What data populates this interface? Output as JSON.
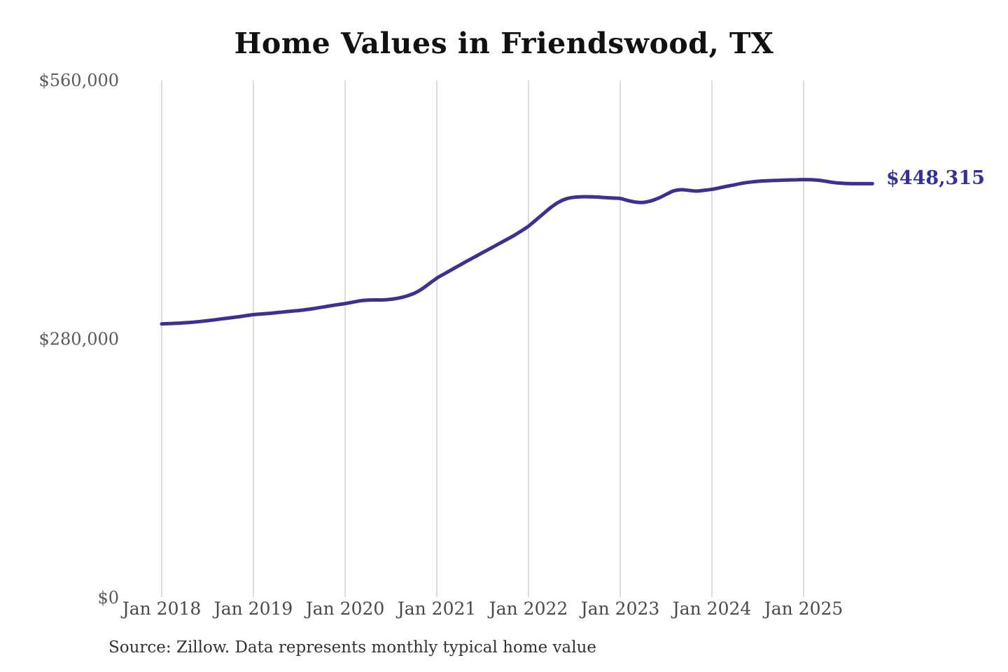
{
  "title": "Home Values in Friendswood, TX",
  "source_note": "Source: Zillow. Data represents monthly typical home value",
  "end_label": "$448,315",
  "colors": {
    "line": "#3b3191",
    "grid": "#c9c9c9",
    "y_tick_text": "#595959",
    "x_tick_text": "#4a4a4a",
    "title_text": "#111111",
    "source_text": "#333333",
    "end_label_text": "#34309a",
    "background": "#ffffff"
  },
  "chart_data": {
    "type": "line",
    "title": "Home Values in Friendswood, TX",
    "series_name": "Monthly typical home value",
    "x": [
      "2018-01",
      "2018-02",
      "2018-03",
      "2018-04",
      "2018-05",
      "2018-06",
      "2018-07",
      "2018-08",
      "2018-09",
      "2018-10",
      "2018-11",
      "2018-12",
      "2019-01",
      "2019-02",
      "2019-03",
      "2019-04",
      "2019-05",
      "2019-06",
      "2019-07",
      "2019-08",
      "2019-09",
      "2019-10",
      "2019-11",
      "2019-12",
      "2020-01",
      "2020-02",
      "2020-03",
      "2020-04",
      "2020-05",
      "2020-06",
      "2020-07",
      "2020-08",
      "2020-09",
      "2020-10",
      "2020-11",
      "2020-12",
      "2021-01",
      "2021-02",
      "2021-03",
      "2021-04",
      "2021-05",
      "2021-06",
      "2021-07",
      "2021-08",
      "2021-09",
      "2021-10",
      "2021-11",
      "2021-12",
      "2022-01",
      "2022-02",
      "2022-03",
      "2022-04",
      "2022-05",
      "2022-06",
      "2022-07",
      "2022-08",
      "2022-09",
      "2022-10",
      "2022-11",
      "2022-12",
      "2023-01",
      "2023-02",
      "2023-03",
      "2023-04",
      "2023-05",
      "2023-06",
      "2023-07",
      "2023-08",
      "2023-09",
      "2023-10",
      "2023-11",
      "2023-12",
      "2024-01",
      "2024-02",
      "2024-03",
      "2024-04",
      "2024-05",
      "2024-06",
      "2024-07",
      "2024-08",
      "2024-09",
      "2024-10",
      "2024-11",
      "2024-12",
      "2025-01",
      "2025-02",
      "2025-03",
      "2025-04",
      "2025-05",
      "2025-06",
      "2025-07",
      "2025-08",
      "2025-09",
      "2025-10"
    ],
    "values": [
      296500,
      296800,
      297200,
      297700,
      298300,
      299100,
      300000,
      301000,
      302100,
      303100,
      304200,
      305400,
      306500,
      307200,
      307900,
      308700,
      309500,
      310300,
      311100,
      312100,
      313300,
      314600,
      316000,
      317300,
      318500,
      320000,
      321500,
      322300,
      322500,
      322500,
      323200,
      324500,
      326500,
      329500,
      334000,
      340000,
      346000,
      350800,
      355500,
      360100,
      364700,
      369200,
      373700,
      378200,
      382700,
      387200,
      391700,
      396800,
      402300,
      409200,
      416200,
      423100,
      428600,
      432100,
      433600,
      434100,
      434100,
      433800,
      433300,
      432800,
      432300,
      430100,
      428400,
      428000,
      429600,
      432600,
      436600,
      440500,
      441800,
      441000,
      440300,
      441100,
      442200,
      443800,
      445500,
      447200,
      448800,
      450000,
      450800,
      451300,
      451700,
      452000,
      452300,
      452500,
      452700,
      452600,
      452000,
      450800,
      449500,
      448800,
      448400,
      448300,
      448320,
      448315
    ],
    "x_ticks": [
      0,
      12,
      24,
      36,
      48,
      60,
      72,
      84
    ],
    "x_tick_labels": [
      "Jan 2018",
      "Jan 2019",
      "Jan 2020",
      "Jan 2021",
      "Jan 2022",
      "Jan 2023",
      "Jan 2024",
      "Jan 2025"
    ],
    "y_ticks": [
      0,
      280000,
      560000
    ],
    "y_tick_labels": [
      "$0",
      "$280,000",
      "$560,000"
    ],
    "ylim": [
      0,
      560000
    ],
    "grid": "vertical",
    "legend": "none",
    "end_annotation": "$448,315"
  }
}
